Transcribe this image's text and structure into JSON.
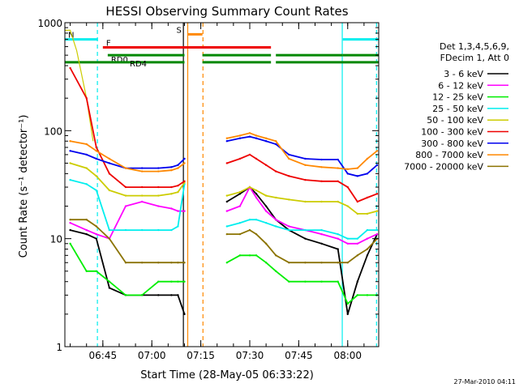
{
  "chart_data": {
    "type": "line",
    "title": "HESSI Observing Summary Count Rates",
    "xlabel": "Start Time (28-May-05 06:33:22)",
    "ylabel": "Count Rate (s⁻¹ detector⁻¹)",
    "y_scale": "log",
    "ylim": [
      1,
      1000
    ],
    "xlim": [
      "06:33:22",
      "08:09:30"
    ],
    "y_ticks": [
      {
        "value": 1,
        "label": "1"
      },
      {
        "value": 10,
        "label": "10"
      },
      {
        "value": 100,
        "label": "100"
      },
      {
        "value": 1000,
        "label": "1000"
      }
    ],
    "x_ticks": [
      {
        "value": "06:45",
        "label": "06:45"
      },
      {
        "value": "07:00",
        "label": "07:00"
      },
      {
        "value": "07:15",
        "label": "07:15"
      },
      {
        "value": "07:30",
        "label": "07:30"
      },
      {
        "value": "07:45",
        "label": "07:45"
      },
      {
        "value": "08:00",
        "label": "08:00"
      }
    ],
    "legend_placement": "right",
    "legend_header": [
      "Det 1,3,4,5,6,9,",
      "FDecim 1, Att 0"
    ],
    "series": [
      {
        "name": "3 - 6 keV",
        "color": "#000000",
        "x": [
          "06:35",
          "06:40",
          "06:43",
          "06:47",
          "06:52",
          "06:57",
          "07:02",
          "07:06",
          "07:08",
          "07:10",
          "07:23",
          "07:27",
          "07:30",
          "07:32",
          "07:35",
          "07:38",
          "07:42",
          "07:47",
          "07:52",
          "07:57",
          "08:00",
          "08:03",
          "08:06",
          "08:09"
        ],
        "y": [
          12,
          11,
          10,
          3.5,
          3,
          3,
          3,
          3,
          3,
          2,
          22,
          26,
          30,
          26,
          20,
          15,
          12,
          10,
          9,
          8,
          2,
          4,
          7,
          11
        ]
      },
      {
        "name": "6 - 12 keV",
        "color": "#ff00ff",
        "x": [
          "06:35",
          "06:40",
          "06:43",
          "06:47",
          "06:52",
          "06:57",
          "07:02",
          "07:06",
          "07:08",
          "07:10",
          "07:23",
          "07:27",
          "07:30",
          "07:32",
          "07:35",
          "07:38",
          "07:42",
          "07:47",
          "07:52",
          "07:57",
          "08:00",
          "08:03",
          "08:06",
          "08:09"
        ],
        "y": [
          14,
          12,
          11,
          10,
          20,
          22,
          20,
          19,
          18,
          18,
          18,
          20,
          30,
          24,
          18,
          15,
          13,
          12,
          11,
          10,
          9,
          9,
          10,
          11
        ]
      },
      {
        "name": "12 - 25 keV",
        "color": "#00ee00",
        "x": [
          "06:35",
          "06:40",
          "06:43",
          "06:47",
          "06:52",
          "06:57",
          "07:02",
          "07:06",
          "07:08",
          "07:10",
          "07:23",
          "07:27",
          "07:30",
          "07:32",
          "07:35",
          "07:38",
          "07:42",
          "07:47",
          "07:52",
          "07:57",
          "08:00",
          "08:03",
          "08:06",
          "08:09"
        ],
        "y": [
          9,
          5,
          5,
          4,
          3,
          3,
          4,
          4,
          4,
          4,
          6,
          7,
          7,
          7,
          6,
          5,
          4,
          4,
          4,
          4,
          2.5,
          3,
          3,
          3
        ]
      },
      {
        "name": "25 - 50 keV",
        "color": "#00eeee",
        "x": [
          "06:35",
          "06:40",
          "06:43",
          "06:47",
          "06:52",
          "06:57",
          "07:02",
          "07:06",
          "07:08",
          "07:10",
          "07:23",
          "07:27",
          "07:30",
          "07:32",
          "07:35",
          "07:38",
          "07:42",
          "07:47",
          "07:52",
          "07:57",
          "08:00",
          "08:03",
          "08:06",
          "08:09"
        ],
        "y": [
          35,
          32,
          28,
          12,
          12,
          12,
          12,
          12,
          13,
          32,
          13,
          14,
          15,
          15,
          14,
          13,
          12,
          12,
          12,
          11,
          10,
          10,
          12,
          12
        ]
      },
      {
        "name": "50 - 100 keV",
        "color": "#cccc00",
        "x": [
          "06:35",
          "06:40",
          "06:43",
          "06:47",
          "06:52",
          "06:57",
          "07:02",
          "07:06",
          "07:08",
          "07:10",
          "07:23",
          "07:27",
          "07:30",
          "07:32",
          "07:35",
          "07:38",
          "07:42",
          "07:47",
          "07:52",
          "07:57",
          "08:00",
          "08:03",
          "08:06",
          "08:09"
        ],
        "y": [
          50,
          45,
          38,
          28,
          25,
          25,
          25,
          26,
          27,
          33,
          25,
          27,
          30,
          28,
          25,
          24,
          23,
          22,
          22,
          22,
          20,
          17,
          17,
          18
        ]
      },
      {
        "name": "100 - 300 keV",
        "color": "#ee0000",
        "x": [
          "06:35",
          "06:40",
          "06:43",
          "06:47",
          "06:52",
          "06:57",
          "07:02",
          "07:06",
          "07:08",
          "07:10",
          "07:23",
          "07:27",
          "07:30",
          "07:32",
          "07:35",
          "07:38",
          "07:42",
          "07:47",
          "07:52",
          "07:57",
          "08:00",
          "08:03",
          "08:06",
          "08:09"
        ],
        "y": [
          380,
          200,
          70,
          40,
          30,
          30,
          30,
          30,
          31,
          34,
          50,
          55,
          60,
          55,
          48,
          42,
          38,
          35,
          34,
          34,
          30,
          22,
          24,
          26
        ]
      },
      {
        "name": "300 - 800 keV",
        "color": "#0000ee",
        "x": [
          "06:35",
          "06:40",
          "06:43",
          "06:47",
          "06:52",
          "06:57",
          "07:02",
          "07:06",
          "07:08",
          "07:10",
          "07:23",
          "07:27",
          "07:30",
          "07:32",
          "07:35",
          "07:38",
          "07:42",
          "07:47",
          "07:52",
          "07:57",
          "08:00",
          "08:03",
          "08:06",
          "08:09"
        ],
        "y": [
          65,
          60,
          55,
          50,
          45,
          45,
          45,
          46,
          48,
          55,
          80,
          85,
          88,
          85,
          80,
          75,
          60,
          55,
          54,
          54,
          40,
          38,
          40,
          48
        ]
      },
      {
        "name": "800 - 7000 keV",
        "color": "#ff8800",
        "x": [
          "06:35",
          "06:40",
          "06:43",
          "06:47",
          "06:52",
          "06:57",
          "07:02",
          "07:06",
          "07:08",
          "07:10",
          "07:23",
          "07:27",
          "07:30",
          "07:32",
          "07:35",
          "07:38",
          "07:42",
          "07:47",
          "07:52",
          "07:57",
          "08:00",
          "08:03",
          "08:06",
          "08:09"
        ],
        "y": [
          80,
          75,
          65,
          55,
          45,
          42,
          42,
          43,
          45,
          50,
          85,
          90,
          95,
          90,
          85,
          80,
          55,
          48,
          46,
          45,
          44,
          45,
          55,
          65
        ]
      },
      {
        "name": "7000 - 20000 keV",
        "color": "#8b7300",
        "x": [
          "06:35",
          "06:40",
          "06:43",
          "06:47",
          "06:52",
          "06:57",
          "07:02",
          "07:06",
          "07:08",
          "07:10",
          "07:23",
          "07:27",
          "07:30",
          "07:32",
          "07:35",
          "07:38",
          "07:42",
          "07:47",
          "07:52",
          "07:57",
          "08:00",
          "08:03",
          "08:06",
          "08:09"
        ],
        "y": [
          15,
          15,
          13,
          10,
          6,
          6,
          6,
          6,
          6,
          6,
          11,
          11,
          12,
          11,
          9,
          7,
          6,
          6,
          6,
          6,
          6,
          7,
          8,
          10
        ]
      }
    ],
    "extra_traces": [
      {
        "color": "#cccc00",
        "x": [
          "06:33:30",
          "06:35",
          "06:37",
          "06:40",
          "06:42"
        ],
        "y": [
          850,
          850,
          550,
          200,
          80
        ]
      }
    ],
    "flag_bars": [
      {
        "label": "N",
        "color": "#00eeee",
        "y": 700,
        "segments": [
          [
            "06:33:22",
            "06:43:30"
          ],
          [
            "07:58:30",
            "08:09:30"
          ]
        ]
      },
      {
        "label": "S",
        "color": "#ff8800",
        "y": 780,
        "segments": [
          [
            "07:11:00",
            "07:15:30"
          ]
        ]
      },
      {
        "label": "F",
        "color": "#ee0000",
        "y": 590,
        "segments": [
          [
            "06:45:00",
            "07:36:30"
          ]
        ]
      },
      {
        "label": "RD0",
        "color": "#008800",
        "y": 500,
        "segments": [
          [
            "06:46:30",
            "07:10:00"
          ],
          [
            "07:15:30",
            "07:36:30"
          ],
          [
            "07:38:00",
            "07:58:30"
          ],
          [
            "07:58:30",
            "08:09:30"
          ]
        ]
      },
      {
        "label": "RD4",
        "color": "#008800",
        "y": 430,
        "segments": [
          [
            "06:33:22",
            "07:10:00"
          ],
          [
            "07:15:30",
            "07:36:30"
          ],
          [
            "07:38:00",
            "08:09:30"
          ]
        ]
      }
    ],
    "vertical_markers": [
      {
        "x": "06:43:20",
        "color": "#00eeee",
        "style": "dashed"
      },
      {
        "x": "07:09:40",
        "color": "#000000",
        "style": "solid"
      },
      {
        "x": "07:11:00",
        "color": "#ff8800",
        "style": "solid"
      },
      {
        "x": "07:15:40",
        "color": "#ff8800",
        "style": "dashed"
      },
      {
        "x": "07:58:20",
        "color": "#00eeee",
        "style": "solid"
      },
      {
        "x": "08:08:50",
        "color": "#00eeee",
        "style": "dashed"
      }
    ],
    "timestamp": "27-Mar-2010 04:11"
  }
}
